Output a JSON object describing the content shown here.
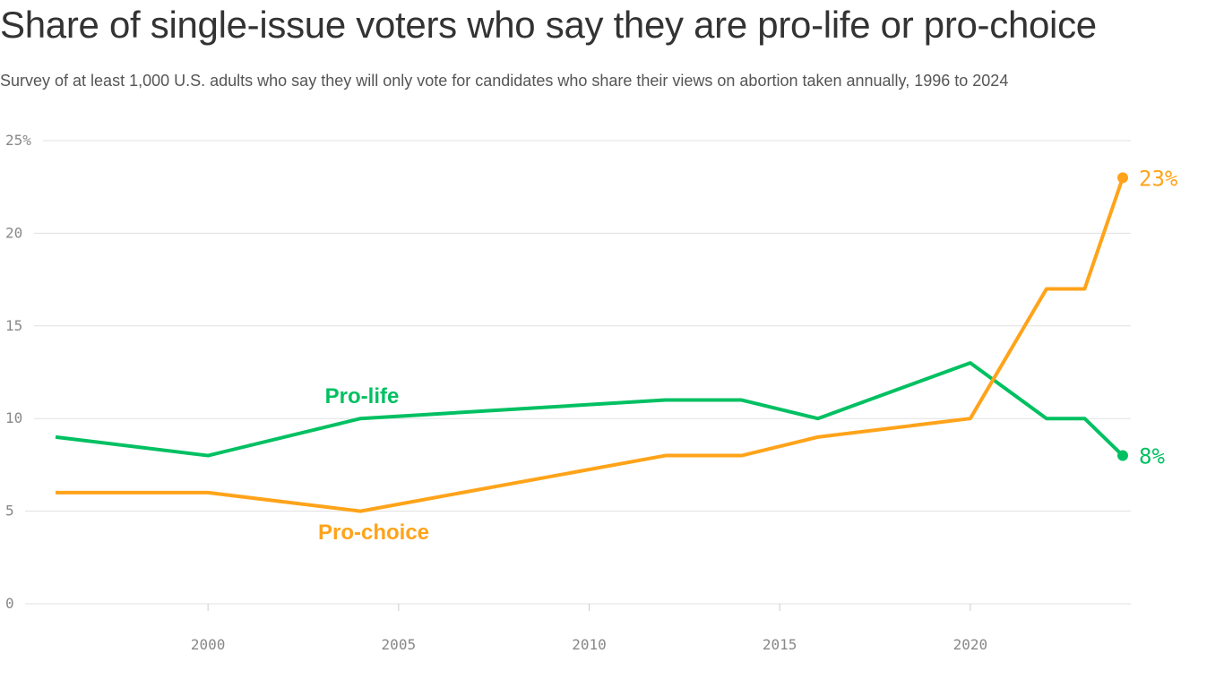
{
  "title": "Share of single-issue voters who say they are pro-life or pro-choice",
  "subtitle": "Survey of at least 1,000 U.S. adults who say they will only vote for candidates who share their views on abortion taken annually, 1996 to 2024",
  "chart_data": {
    "type": "line",
    "title": "Share of single-issue voters who say they are pro-life or pro-choice",
    "xlim": [
      1996,
      2024
    ],
    "ylim": [
      0,
      25
    ],
    "xticks": [
      2000,
      2005,
      2010,
      2015,
      2020
    ],
    "xtick_labels": [
      "2000",
      "2005",
      "2010",
      "2015",
      "2020"
    ],
    "yticks": [
      0,
      5,
      10,
      15,
      20,
      25
    ],
    "ytick_labels": [
      "0",
      "5",
      "10",
      "15",
      "20",
      "25%"
    ],
    "grid": "horizontal",
    "series": [
      {
        "name": "Pro-life",
        "color": "#00c062",
        "x": [
          1996,
          2000,
          2004,
          2012,
          2014,
          2016,
          2020,
          2022,
          2023,
          2024
        ],
        "y": [
          9,
          8,
          10,
          11,
          11,
          10,
          13,
          10,
          10,
          8
        ],
        "end_label": "8%"
      },
      {
        "name": "Pro-choice",
        "color": "#ffa31a",
        "x": [
          1996,
          2000,
          2004,
          2012,
          2014,
          2016,
          2020,
          2022,
          2023,
          2024
        ],
        "y": [
          6,
          6,
          5,
          8,
          8,
          9,
          10,
          17,
          17,
          23
        ],
        "end_label": "23%"
      }
    ]
  }
}
